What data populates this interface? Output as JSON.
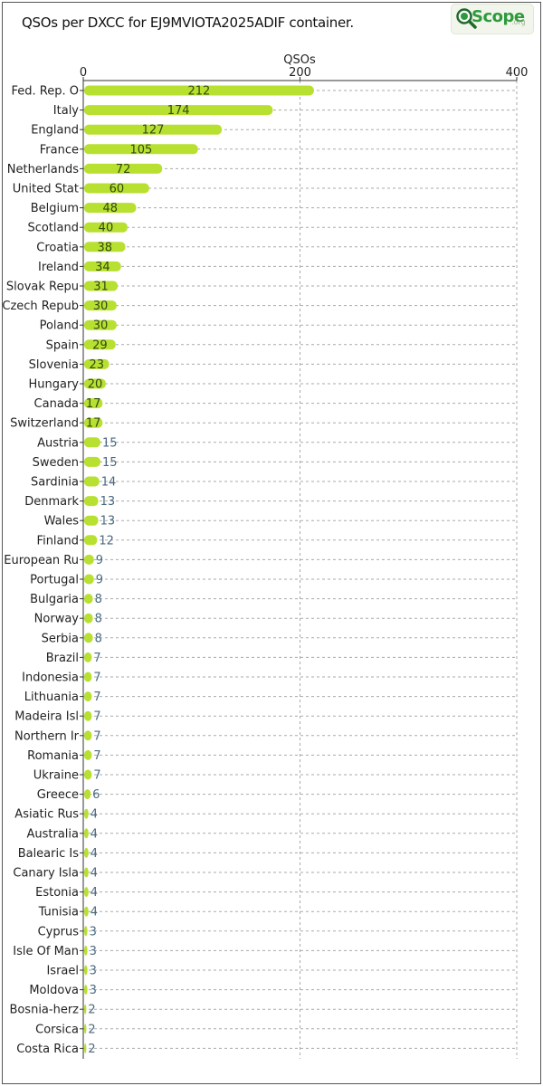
{
  "title": "QSOs per DXCC for EJ9MVIOTA2025ADIF container.",
  "logo": {
    "text": "Scope",
    "suffix": ".org",
    "icon": "magnifier-icon"
  },
  "colors": {
    "bar": "#b8e030",
    "inside_label": "#2f4a10",
    "outside_label": "#4a6a80",
    "grid": "#aaaaaa",
    "axis": "#333333"
  },
  "chart_data": {
    "type": "bar",
    "orientation": "horizontal",
    "title": "QSOs per DXCC for EJ9MVIOTA2025ADIF container.",
    "xlabel": "QSOs",
    "xlim": [
      0,
      400
    ],
    "xticks": [
      0,
      200,
      400
    ],
    "grid": true,
    "categories": [
      "Fed. Rep. O",
      "Italy",
      "England",
      "France",
      "Netherlands",
      "United Stat",
      "Belgium",
      "Scotland",
      "Croatia",
      "Ireland",
      "Slovak Repu",
      "Czech Repub",
      "Poland",
      "Spain",
      "Slovenia",
      "Hungary",
      "Canada",
      "Switzerland",
      "Austria",
      "Sweden",
      "Sardinia",
      "Denmark",
      "Wales",
      "Finland",
      "European Ru",
      "Portugal",
      "Bulgaria",
      "Norway",
      "Serbia",
      "Brazil",
      "Indonesia",
      "Lithuania",
      "Madeira Isl",
      "Northern Ir",
      "Romania",
      "Ukraine",
      "Greece",
      "Asiatic Rus",
      "Australia",
      "Balearic Is",
      "Canary Isla",
      "Estonia",
      "Tunisia",
      "Cyprus",
      "Isle Of Man",
      "Israel",
      "Moldova",
      "Bosnia-herz",
      "Corsica",
      "Costa Rica"
    ],
    "values": [
      212,
      174,
      127,
      105,
      72,
      60,
      48,
      40,
      38,
      34,
      31,
      30,
      30,
      29,
      23,
      20,
      17,
      17,
      15,
      15,
      14,
      13,
      13,
      12,
      9,
      9,
      8,
      8,
      8,
      7,
      7,
      7,
      7,
      7,
      7,
      7,
      6,
      4,
      4,
      4,
      4,
      4,
      4,
      3,
      3,
      3,
      3,
      2,
      2,
      2
    ]
  }
}
